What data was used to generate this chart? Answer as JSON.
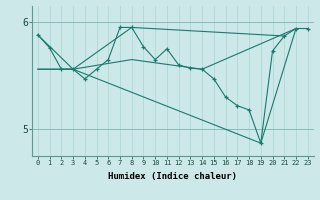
{
  "title": "",
  "xlabel": "Humidex (Indice chaleur)",
  "xlim": [
    -0.5,
    23.5
  ],
  "ylim": [
    4.75,
    6.15
  ],
  "yticks": [
    5,
    6
  ],
  "ytick_labels": [
    "5",
    "6"
  ],
  "xticks": [
    0,
    1,
    2,
    3,
    4,
    5,
    6,
    7,
    8,
    9,
    10,
    11,
    12,
    13,
    14,
    15,
    16,
    17,
    18,
    19,
    20,
    21,
    22,
    23
  ],
  "bg_color": "#cce8e8",
  "line_color": "#1a7a6e",
  "grid_color": "#b0d8d8",
  "main_x": [
    0,
    1,
    2,
    3,
    4,
    5,
    6,
    7,
    8,
    9,
    10,
    11,
    12,
    13,
    14,
    15,
    16,
    17,
    18,
    19,
    20,
    21,
    22,
    23
  ],
  "main_y": [
    5.88,
    5.76,
    5.56,
    5.56,
    5.47,
    5.56,
    5.65,
    5.95,
    5.95,
    5.77,
    5.65,
    5.75,
    5.6,
    5.57,
    5.56,
    5.47,
    5.3,
    5.22,
    5.18,
    4.87,
    5.73,
    5.87,
    5.94,
    5.94
  ],
  "line2_x": [
    0,
    3,
    8,
    21
  ],
  "line2_y": [
    5.88,
    5.56,
    5.95,
    5.87
  ],
  "line3_x": [
    0,
    3,
    8,
    14,
    22
  ],
  "line3_y": [
    5.56,
    5.56,
    5.65,
    5.56,
    5.94
  ],
  "line4_x": [
    0,
    3,
    19,
    22
  ],
  "line4_y": [
    5.56,
    5.56,
    4.87,
    5.94
  ]
}
